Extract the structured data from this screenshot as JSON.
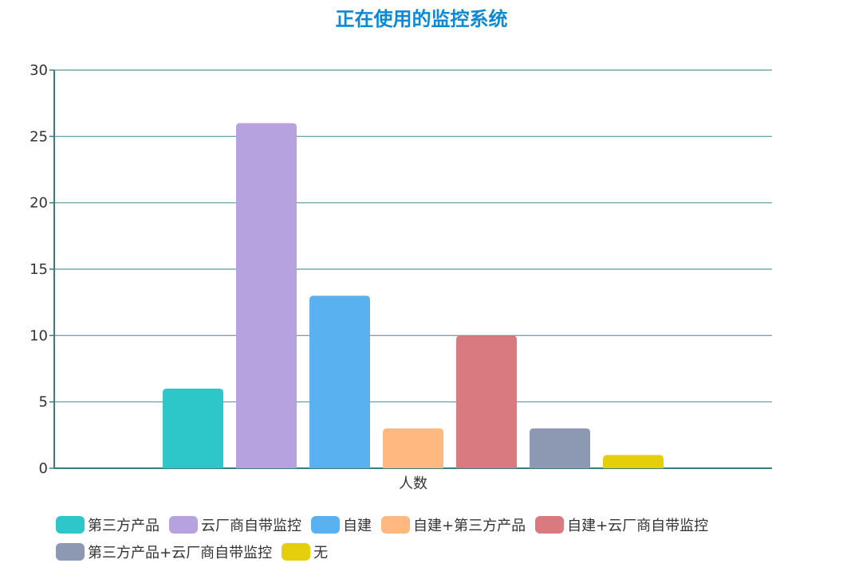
{
  "chart_data": {
    "type": "bar",
    "title": "正在使用的监控系统",
    "categories": [
      "人数"
    ],
    "ylim": [
      0,
      30
    ],
    "yticks": [
      0,
      5,
      10,
      15,
      20,
      25,
      30
    ],
    "grid": true,
    "legend_position": "bottom",
    "series": [
      {
        "name": "第三方产品",
        "values": [
          6
        ],
        "color": "#2ec7c9"
      },
      {
        "name": "云厂商自带监控",
        "values": [
          26
        ],
        "color": "#b6a2de"
      },
      {
        "name": "自建",
        "values": [
          13
        ],
        "color": "#5ab1ef"
      },
      {
        "name": "自建+第三方产品",
        "values": [
          3
        ],
        "color": "#ffb980"
      },
      {
        "name": "自建+云厂商自带监控",
        "values": [
          10
        ],
        "color": "#d87a80"
      },
      {
        "name": "第三方产品+云厂商自带监控",
        "values": [
          3
        ],
        "color": "#8d98b3"
      },
      {
        "name": "无",
        "values": [
          1
        ],
        "color": "#e5cf0d"
      }
    ]
  }
}
